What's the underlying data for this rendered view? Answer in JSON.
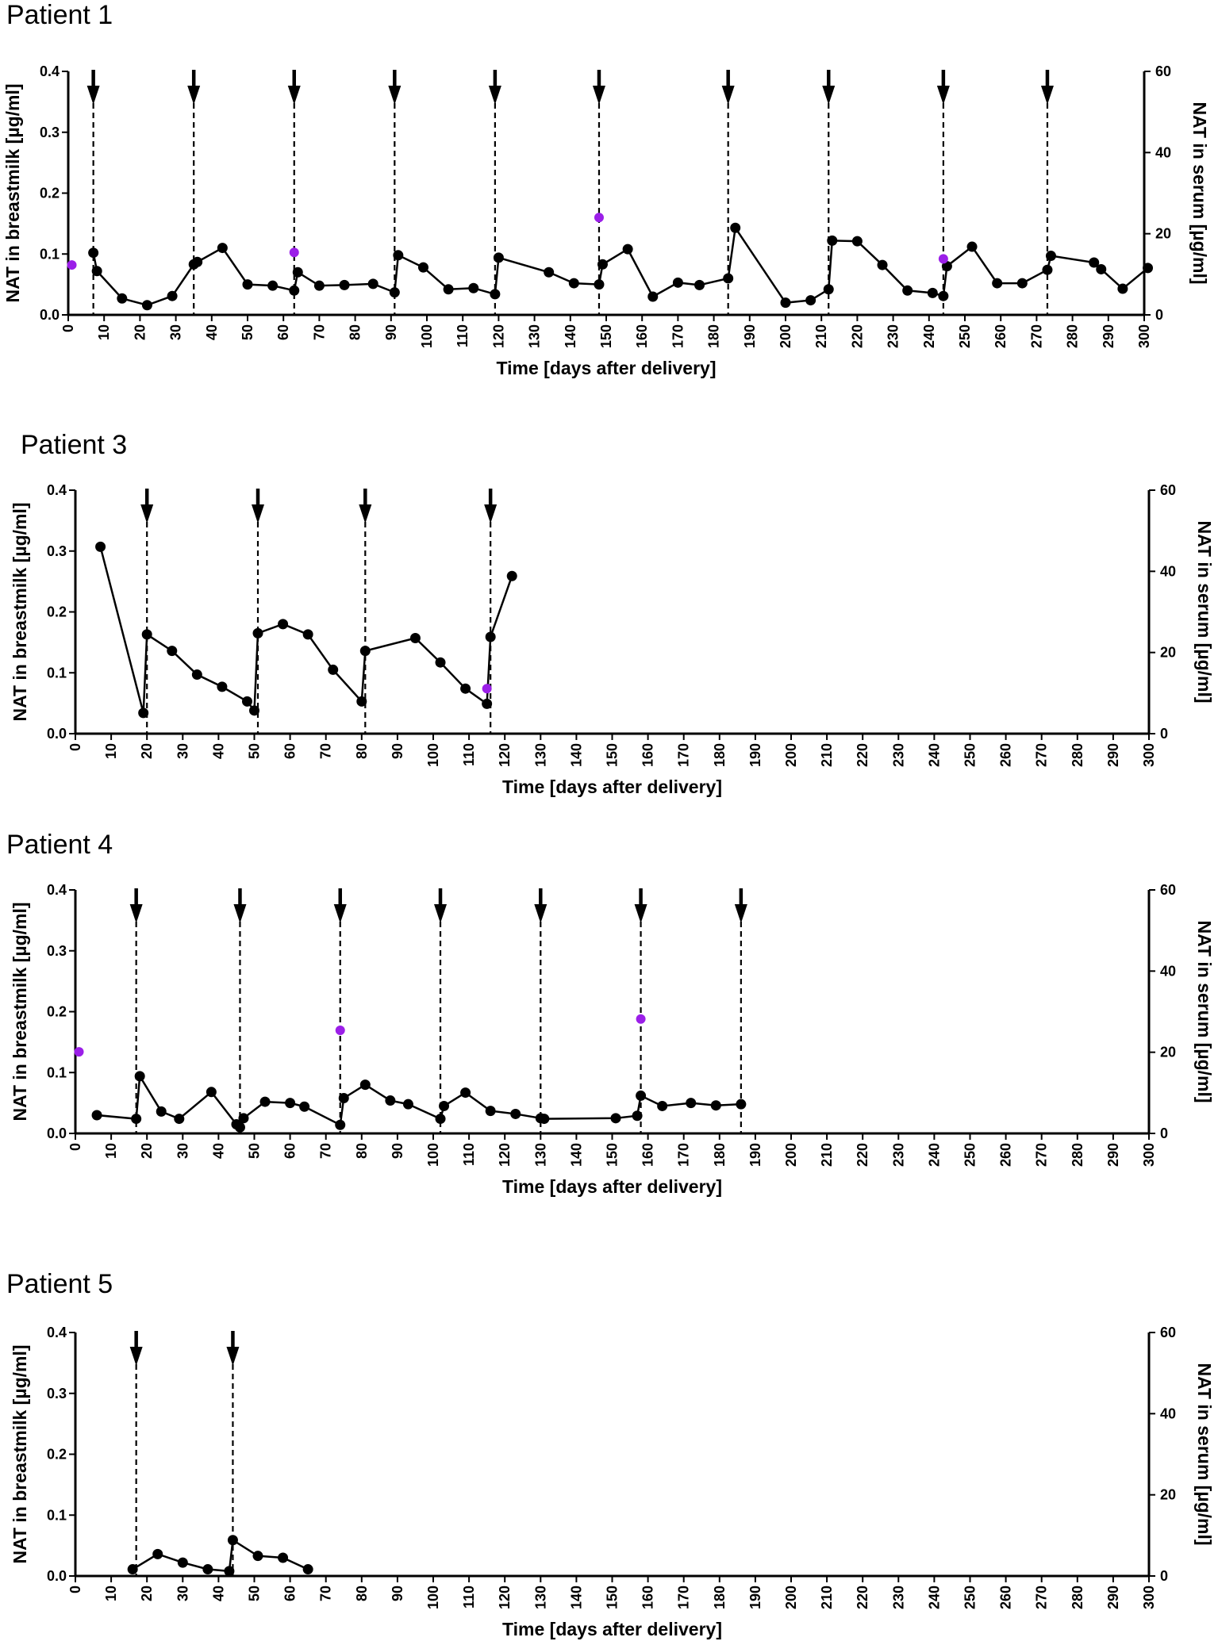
{
  "chart_data": [
    {
      "type": "line",
      "title": "Patient 1",
      "xlabel": "Time [days after delivery]",
      "ylabel": "NAT in breastmilk  [µg/ml]",
      "y2label": "NAT in serum [µg/ml]",
      "xlim": [
        0,
        300
      ],
      "ylim": [
        0,
        0.4
      ],
      "y2lim": [
        0,
        60
      ],
      "x_ticks": [
        0,
        10,
        20,
        30,
        40,
        50,
        60,
        70,
        80,
        90,
        100,
        110,
        120,
        130,
        140,
        150,
        160,
        170,
        180,
        190,
        200,
        210,
        220,
        230,
        240,
        250,
        260,
        270,
        280,
        290,
        300
      ],
      "y_ticks": [
        "0.0",
        "0.1",
        "0.2",
        "0.3",
        "0.4"
      ],
      "y2_ticks": [
        "0",
        "20",
        "40",
        "60"
      ],
      "grid": false,
      "dose_days": [
        7,
        35,
        63,
        91,
        119,
        148,
        184,
        212,
        244,
        273
      ],
      "series": [
        {
          "color": "#000000",
          "axis": "left",
          "x": [
            7,
            8,
            15,
            22,
            29,
            35,
            36,
            43,
            50,
            57,
            63,
            64,
            70,
            77,
            85,
            91,
            92,
            99,
            106,
            113,
            119,
            120,
            134,
            141,
            148,
            149,
            156,
            163,
            170,
            176,
            184,
            186,
            200,
            207,
            212,
            213,
            220,
            227,
            234,
            241,
            244,
            245,
            252,
            259,
            266,
            273,
            274,
            286,
            288,
            294,
            301
          ],
          "y": [
            0.102,
            0.072,
            0.027,
            0.016,
            0.031,
            0.083,
            0.087,
            0.11,
            0.05,
            0.048,
            0.04,
            0.07,
            0.048,
            0.049,
            0.051,
            0.037,
            0.098,
            0.078,
            0.042,
            0.044,
            0.034,
            0.094,
            0.07,
            0.052,
            0.05,
            0.083,
            0.108,
            0.03,
            0.053,
            0.049,
            0.06,
            0.143,
            0.02,
            0.024,
            0.042,
            0.122,
            0.121,
            0.082,
            0.04,
            0.036,
            0.031,
            0.08,
            0.112,
            0.052,
            0.052,
            0.074,
            0.097,
            0.086,
            0.075,
            0.043,
            0.077
          ]
        },
        {
          "color": "#9B1FE8",
          "axis": "right",
          "x": [
            1,
            63,
            148,
            244
          ],
          "y": [
            12.3,
            15.4,
            24.0,
            13.8
          ]
        }
      ]
    },
    {
      "type": "line",
      "title": "Patient 3",
      "xlabel": "Time [days after delivery]",
      "ylabel": "NAT in breastmilk  [µg/ml]",
      "y2label": "NAT in serum [µg/ml]",
      "xlim": [
        0,
        300
      ],
      "ylim": [
        0,
        0.4
      ],
      "y2lim": [
        0,
        60
      ],
      "x_ticks": [
        0,
        10,
        20,
        30,
        40,
        50,
        60,
        70,
        80,
        90,
        100,
        110,
        120,
        130,
        140,
        150,
        160,
        170,
        180,
        190,
        200,
        210,
        220,
        230,
        240,
        250,
        260,
        270,
        280,
        290,
        300
      ],
      "y_ticks": [
        "0.0",
        "0.1",
        "0.2",
        "0.3",
        "0.4"
      ],
      "y2_ticks": [
        "0",
        "20",
        "40",
        "60"
      ],
      "grid": false,
      "dose_days": [
        20,
        51,
        81,
        116
      ],
      "series": [
        {
          "color": "#000000",
          "axis": "left",
          "x": [
            7,
            19,
            20,
            27,
            34,
            41,
            48,
            50,
            51,
            58,
            65,
            72,
            80,
            81,
            95,
            102,
            109,
            115,
            116,
            122
          ],
          "y": [
            0.307,
            0.034,
            0.163,
            0.136,
            0.097,
            0.077,
            0.053,
            0.038,
            0.165,
            0.18,
            0.163,
            0.105,
            0.053,
            0.136,
            0.157,
            0.117,
            0.074,
            0.049,
            0.159,
            0.259
          ]
        },
        {
          "color": "#9B1FE8",
          "axis": "right",
          "x": [
            115
          ],
          "y": [
            11.1
          ]
        }
      ]
    },
    {
      "type": "line",
      "title": "Patient 4",
      "xlabel": "Time [days after delivery]",
      "ylabel": "NAT in breastmilk  [µg/ml]",
      "y2label": "NAT in serum [µg/ml]",
      "xlim": [
        0,
        300
      ],
      "ylim": [
        0,
        0.4
      ],
      "y2lim": [
        0,
        60
      ],
      "x_ticks": [
        0,
        10,
        20,
        30,
        40,
        50,
        60,
        70,
        80,
        90,
        100,
        110,
        120,
        130,
        140,
        150,
        160,
        170,
        180,
        190,
        200,
        210,
        220,
        230,
        240,
        250,
        260,
        270,
        280,
        290,
        300
      ],
      "y_ticks": [
        "0.0",
        "0.1",
        "0.2",
        "0.3",
        "0.4"
      ],
      "y2_ticks": [
        "0",
        "20",
        "40",
        "60"
      ],
      "grid": false,
      "dose_days": [
        17,
        46,
        74,
        102,
        130,
        158,
        186
      ],
      "series": [
        {
          "color": "#000000",
          "axis": "left",
          "x": [
            6,
            17,
            18,
            24,
            29,
            38,
            45,
            46,
            47,
            53,
            60,
            64,
            74,
            75,
            81,
            88,
            93,
            102,
            103,
            109,
            116,
            123,
            130,
            131,
            151,
            157,
            158,
            164,
            172,
            179,
            186
          ],
          "y": [
            0.03,
            0.024,
            0.094,
            0.036,
            0.024,
            0.068,
            0.015,
            0.01,
            0.025,
            0.052,
            0.05,
            0.044,
            0.014,
            0.058,
            0.08,
            0.054,
            0.048,
            0.024,
            0.045,
            0.067,
            0.037,
            0.032,
            0.025,
            0.024,
            0.025,
            0.029,
            0.062,
            0.045,
            0.05,
            0.046,
            0.048
          ]
        },
        {
          "color": "#9B1FE8",
          "axis": "right",
          "x": [
            1,
            74,
            158
          ],
          "y": [
            20.1,
            25.4,
            28.2
          ]
        }
      ]
    },
    {
      "type": "line",
      "title": "Patient 5",
      "xlabel": "Time [days after delivery]",
      "ylabel": "NAT in breastmilk  [µg/ml]",
      "y2label": "NAT in serum [µg/ml]",
      "xlim": [
        0,
        300
      ],
      "ylim": [
        0,
        0.4
      ],
      "y2lim": [
        0,
        60
      ],
      "x_ticks": [
        0,
        10,
        20,
        30,
        40,
        50,
        60,
        70,
        80,
        90,
        100,
        110,
        120,
        130,
        140,
        150,
        160,
        170,
        180,
        190,
        200,
        210,
        220,
        230,
        240,
        250,
        260,
        270,
        280,
        290,
        300
      ],
      "y_ticks": [
        "0.0",
        "0.1",
        "0.2",
        "0.3",
        "0.4"
      ],
      "y2_ticks": [
        "0",
        "20",
        "40",
        "60"
      ],
      "grid": false,
      "dose_days": [
        17,
        44
      ],
      "series": [
        {
          "color": "#000000",
          "axis": "left",
          "x": [
            16,
            23,
            30,
            37,
            43,
            44,
            51,
            58,
            65
          ],
          "y": [
            0.011,
            0.036,
            0.022,
            0.011,
            0.008,
            0.059,
            0.033,
            0.03,
            0.011
          ]
        }
      ]
    }
  ]
}
